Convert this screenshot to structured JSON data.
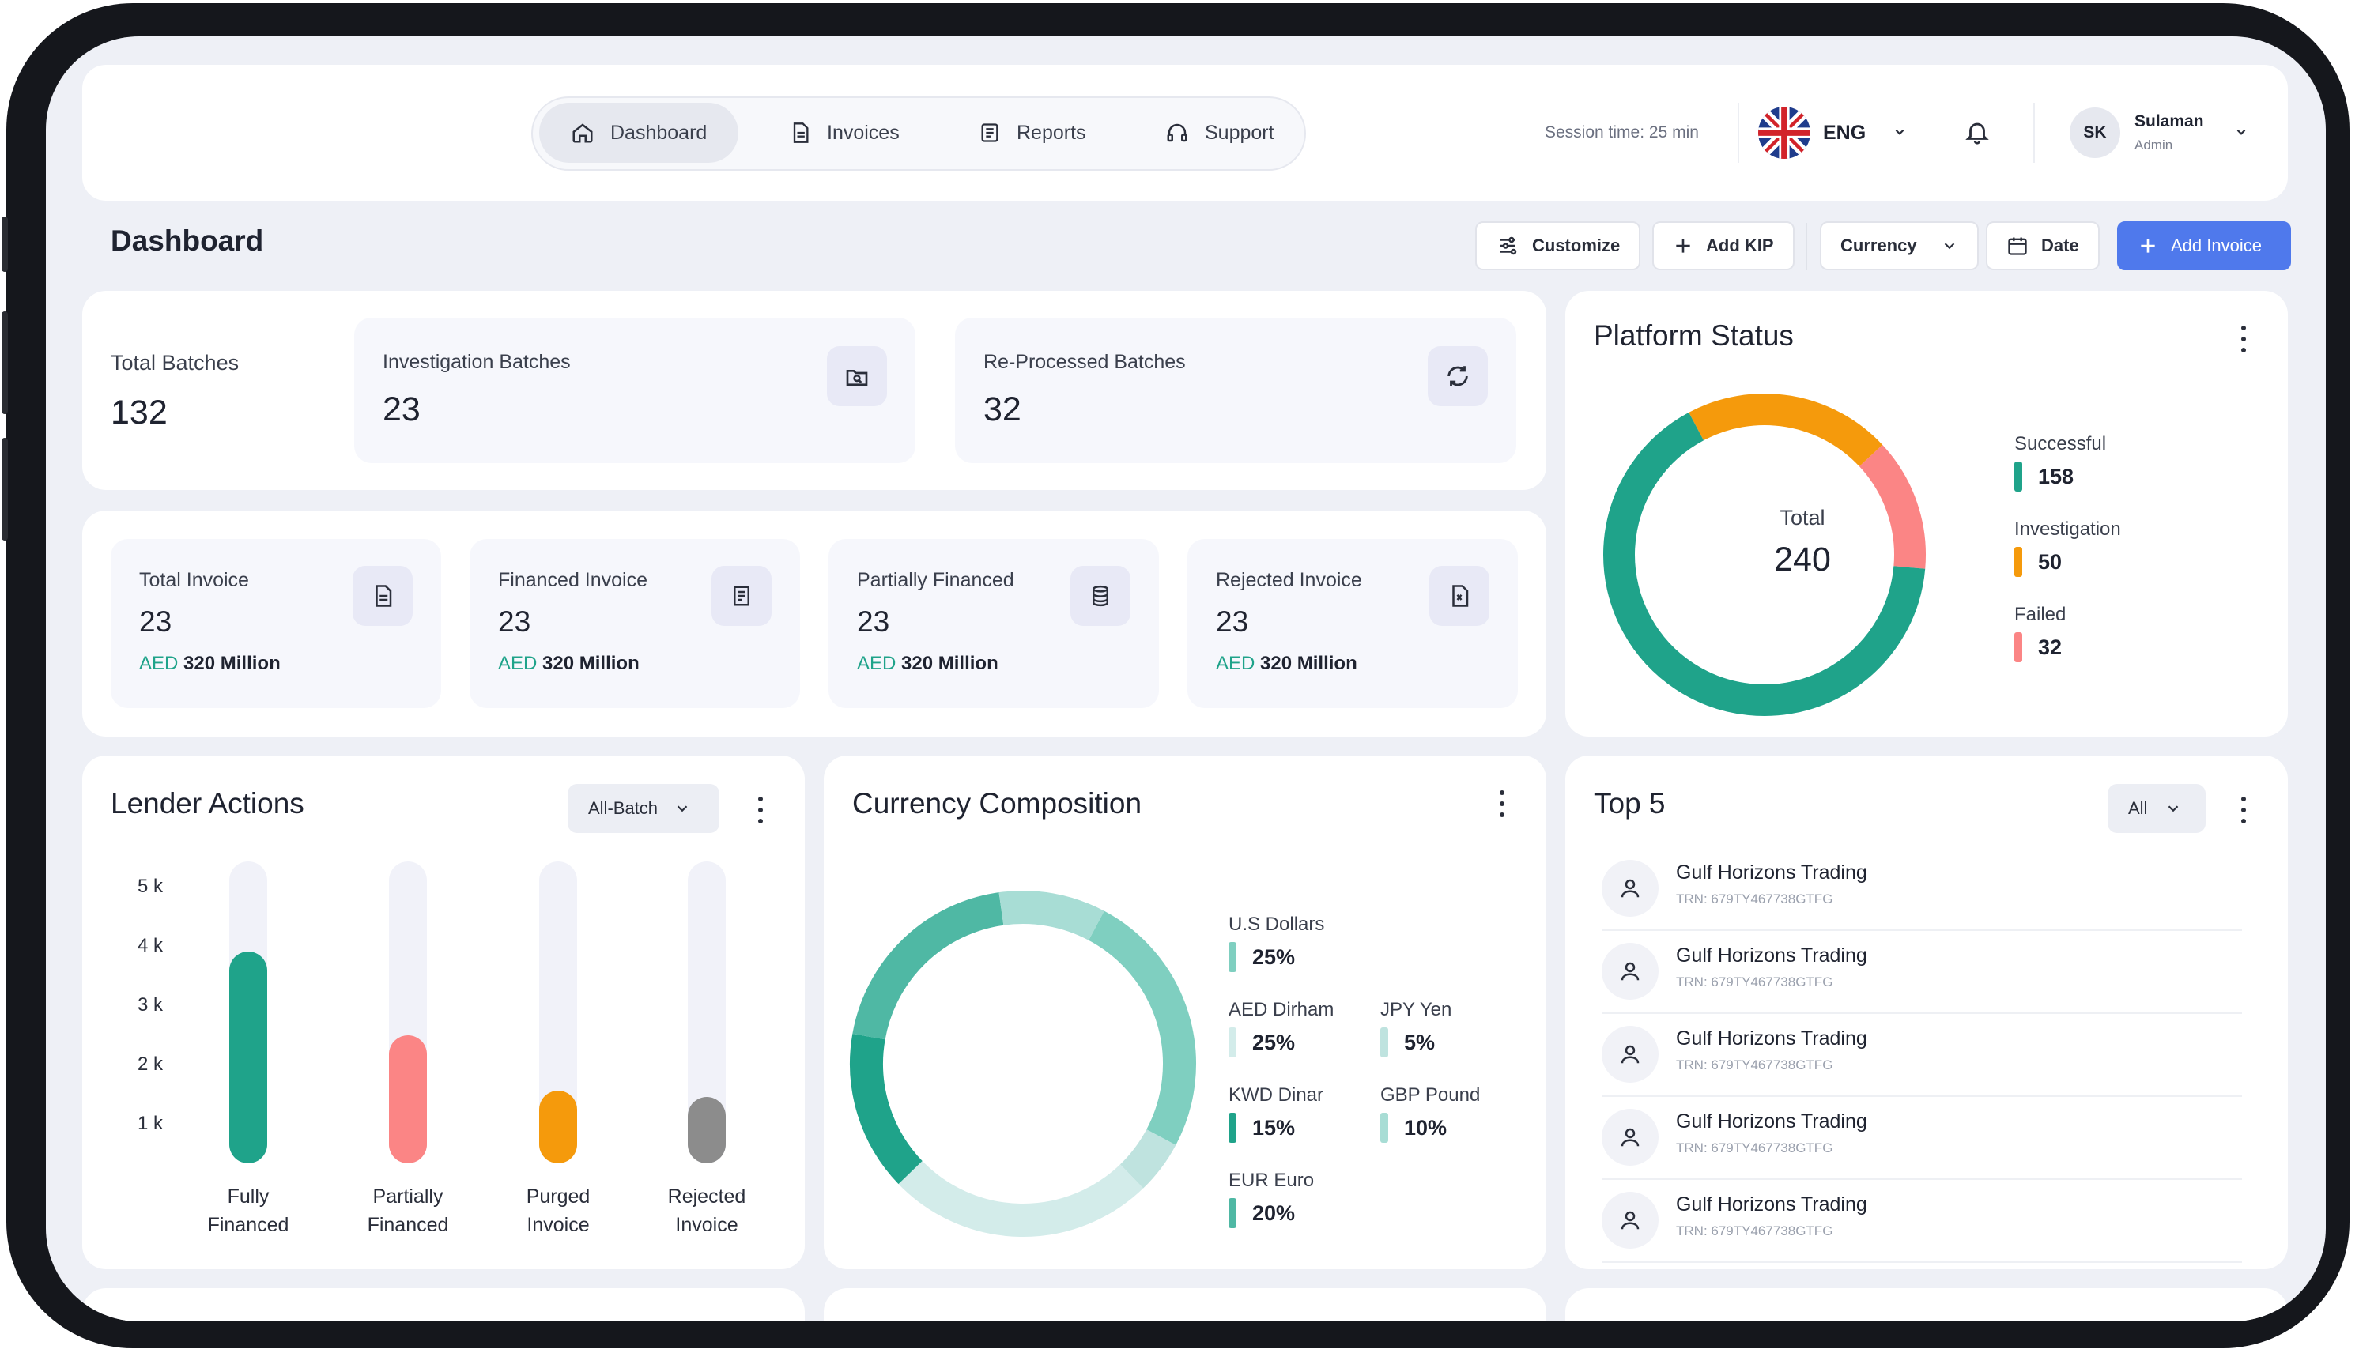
{
  "nav": {
    "items": [
      {
        "label": "Dashboard",
        "icon": "home-icon",
        "active": true
      },
      {
        "label": "Invoices",
        "icon": "document-icon",
        "active": false
      },
      {
        "label": "Reports",
        "icon": "report-icon",
        "active": false
      },
      {
        "label": "Support",
        "icon": "headset-icon",
        "active": false
      }
    ],
    "session_time": "Session time: 25 min",
    "language": "ENG",
    "user": {
      "initials": "SK",
      "name": "Sulaman",
      "role": "Admin"
    }
  },
  "page": {
    "title": "Dashboard"
  },
  "toolbar": {
    "customize": "Customize",
    "add_kip": "Add KIP",
    "currency": "Currency",
    "date": "Date",
    "add_invoice": "Add Invoice"
  },
  "batches": {
    "total": {
      "label": "Total Batches",
      "value": "132"
    },
    "investigation": {
      "label": "Investigation Batches",
      "value": "23"
    },
    "reprocessed": {
      "label": "Re-Processed Batches",
      "value": "32"
    }
  },
  "invoices": [
    {
      "label": "Total Invoice",
      "value": "23",
      "currency": "AED",
      "amount": "320 Million",
      "icon": "document-icon"
    },
    {
      "label": "Financed Invoice",
      "value": "23",
      "currency": "AED",
      "amount": "320 Million",
      "icon": "receipt-icon"
    },
    {
      "label": "Partially Financed",
      "value": "23",
      "currency": "AED",
      "amount": "320 Million",
      "icon": "database-icon"
    },
    {
      "label": "Rejected Invoice",
      "value": "23",
      "currency": "AED",
      "amount": "320 Million",
      "icon": "file-x-icon"
    }
  ],
  "platform_status": {
    "title": "Platform Status",
    "center_label": "Total",
    "center_value": "240",
    "segments": [
      {
        "label": "Successful",
        "value": 158,
        "color": "#1fa38a"
      },
      {
        "label": "Investigation",
        "value": 50,
        "color": "#f59a0c"
      },
      {
        "label": "Failed",
        "value": 32,
        "color": "#fb8585"
      }
    ]
  },
  "lender_actions": {
    "title": "Lender Actions",
    "filter": "All-Batch",
    "y_ticks": [
      "5 k",
      "4 k",
      "3 k",
      "2 k",
      "1 k"
    ],
    "bars": [
      {
        "label_line1": "Fully",
        "label_line2": "Financed",
        "value": 3800,
        "color": "#1fa38a"
      },
      {
        "label_line1": "Partially",
        "label_line2": "Financed",
        "value": 2300,
        "color": "#fb8585"
      },
      {
        "label_line1": "Purged",
        "label_line2": "Invoice",
        "value": 1300,
        "color": "#f59a0c"
      },
      {
        "label_line1": "Rejected",
        "label_line2": "Invoice",
        "value": 1200,
        "color": "#8c8c8c"
      }
    ],
    "max": 5000
  },
  "currency": {
    "title": "Currency Composition",
    "items": [
      {
        "label": "U.S Dollars",
        "value": "25%",
        "color": "#7fcfc0"
      },
      {
        "label": "AED Dirham",
        "value": "25%",
        "color": "#d3ecea"
      },
      {
        "label": "JPY Yen",
        "value": "5%",
        "color": "#bfe3df"
      },
      {
        "label": "KWD Dinar",
        "value": "15%",
        "color": "#1fa38a"
      },
      {
        "label": "GBP Pound",
        "value": "10%",
        "color": "#a8ddd5"
      },
      {
        "label": "EUR Euro",
        "value": "20%",
        "color": "#4fb8a4"
      }
    ]
  },
  "top5": {
    "title": "Top 5",
    "filter": "All",
    "rows": [
      {
        "name": "Gulf Horizons Trading",
        "trn": "TRN: 679TY467738GTFG"
      },
      {
        "name": "Gulf Horizons Trading",
        "trn": "TRN: 679TY467738GTFG"
      },
      {
        "name": "Gulf Horizons Trading",
        "trn": "TRN: 679TY467738GTFG"
      },
      {
        "name": "Gulf Horizons Trading",
        "trn": "TRN: 679TY467738GTFG"
      },
      {
        "name": "Gulf Horizons Trading",
        "trn": "TRN: 679TY467738GTFG"
      }
    ]
  }
}
